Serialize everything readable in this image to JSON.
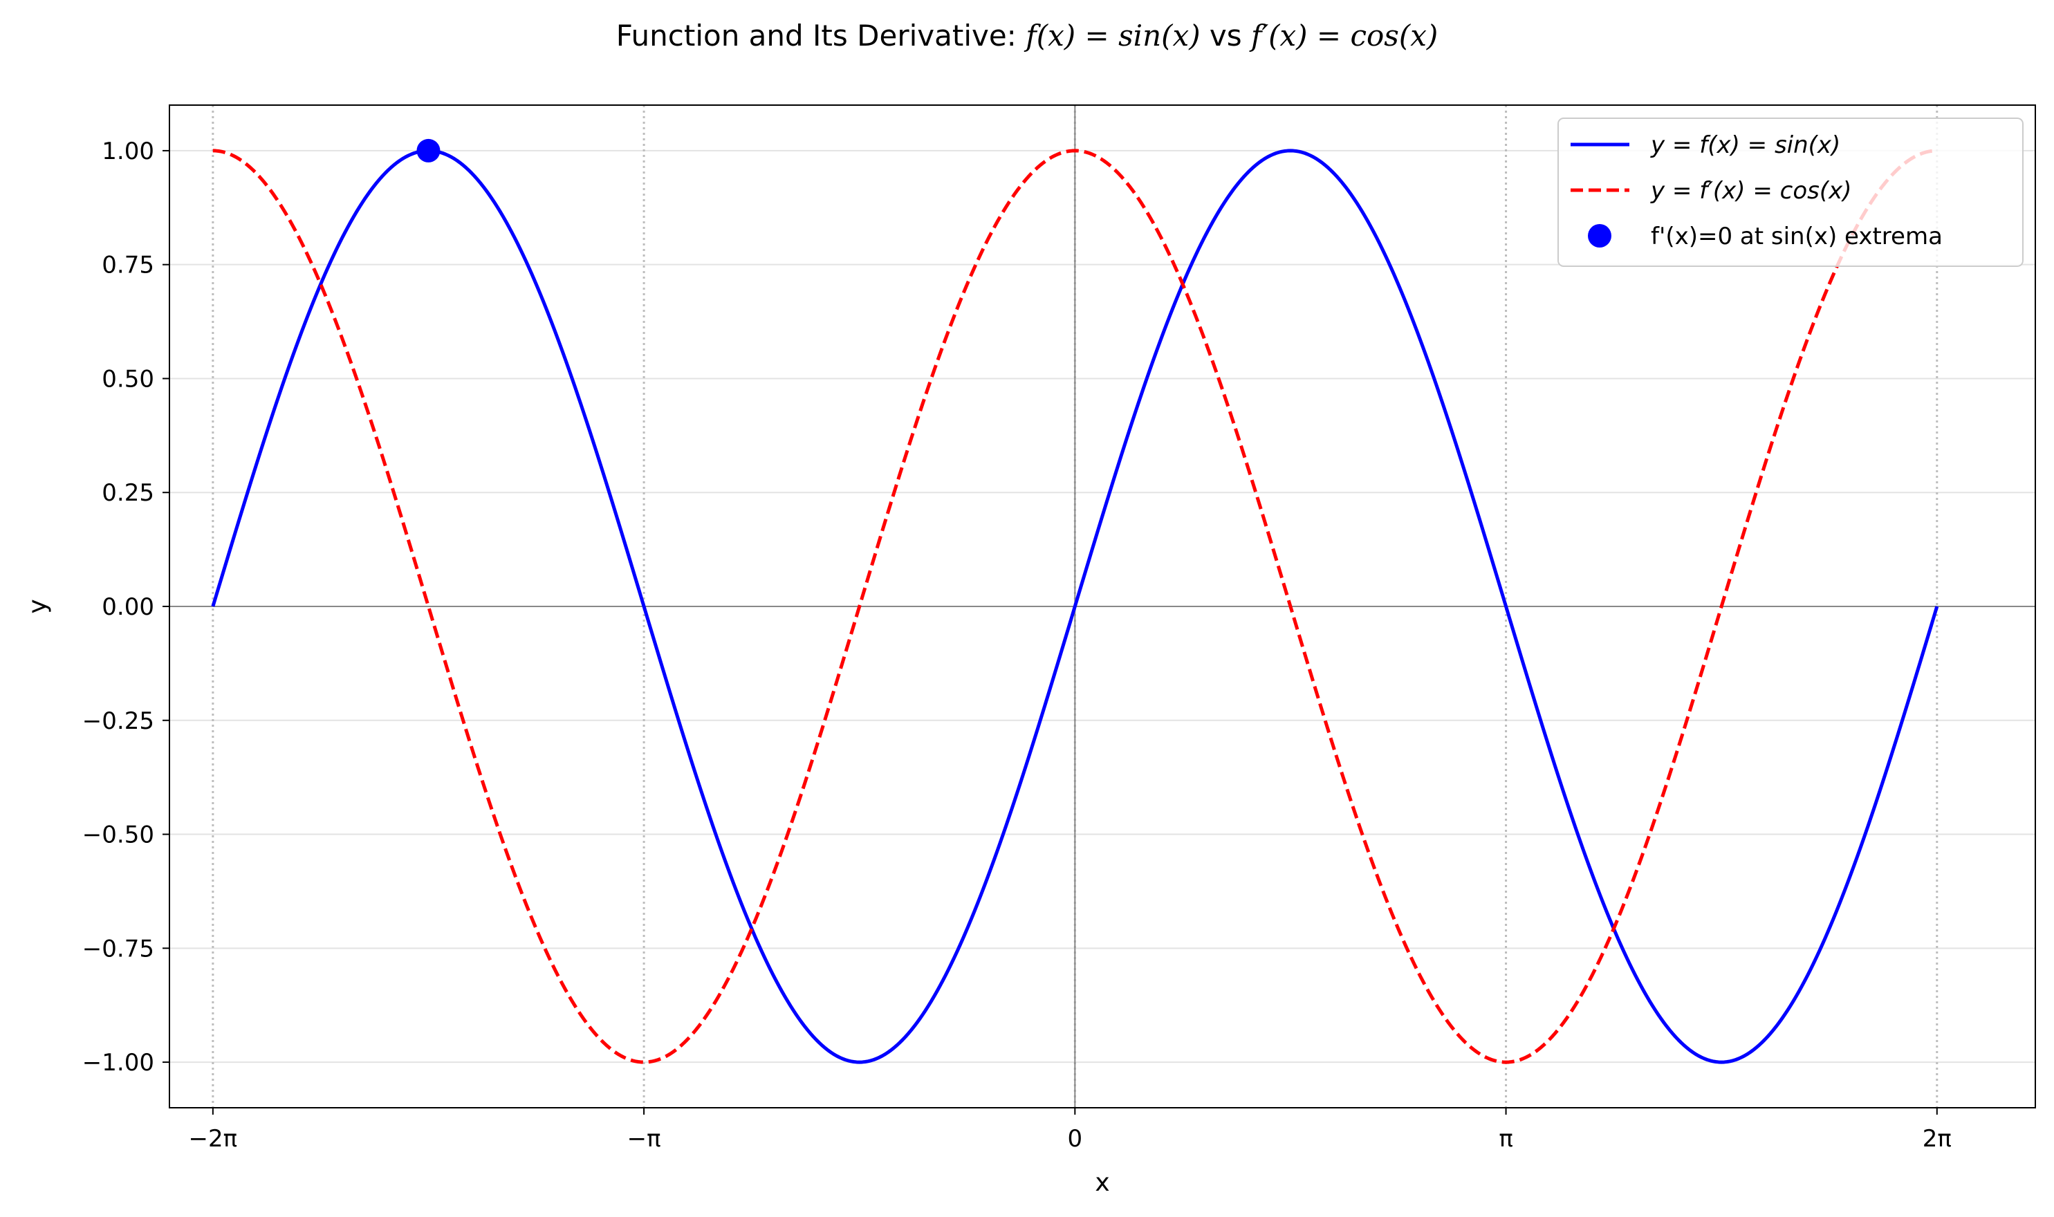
{
  "chart_data": {
    "type": "line",
    "title": {
      "prefix": "Function and Its Derivative: ",
      "f_expr": "f(x) = sin(x)",
      "joiner": " vs ",
      "fprime_expr": "f′(x) = cos(x)"
    },
    "xlabel": "x",
    "ylabel": "y",
    "xlim": [
      -6.6,
      7.0
    ],
    "ylim": [
      -1.1,
      1.1
    ],
    "x_ticks": [
      {
        "value": -6.283185,
        "label": "−2π"
      },
      {
        "value": -3.141593,
        "label": "−π"
      },
      {
        "value": 0,
        "label": "0"
      },
      {
        "value": 3.141593,
        "label": "π"
      },
      {
        "value": 6.283185,
        "label": "2π"
      }
    ],
    "y_ticks": [
      {
        "value": 1.0,
        "label": "1.00"
      },
      {
        "value": 0.75,
        "label": "0.75"
      },
      {
        "value": 0.5,
        "label": "0.50"
      },
      {
        "value": 0.25,
        "label": "0.25"
      },
      {
        "value": 0.0,
        "label": "0.00"
      },
      {
        "value": -0.25,
        "label": "−0.25"
      },
      {
        "value": -0.5,
        "label": "−0.50"
      },
      {
        "value": -0.75,
        "label": "−0.75"
      },
      {
        "value": -1.0,
        "label": "−1.00"
      }
    ],
    "grid": true,
    "legend_position": "top-right",
    "series": [
      {
        "name": "y = f(x) = sin(x)",
        "function": "sin",
        "x_range": [
          -6.283185,
          6.283185
        ],
        "style": "solid",
        "color": "#0000ff"
      },
      {
        "name": "y = f′(x) = cos(x)",
        "function": "cos",
        "x_range": [
          -6.283185,
          6.283185
        ],
        "style": "dashed",
        "color": "#ff0000"
      }
    ],
    "markers": [
      {
        "name": "f'(x)=0 at sin(x) extrema",
        "points": [
          {
            "x": -4.712389,
            "y": 1.0
          }
        ],
        "color": "#0000ff"
      }
    ]
  }
}
